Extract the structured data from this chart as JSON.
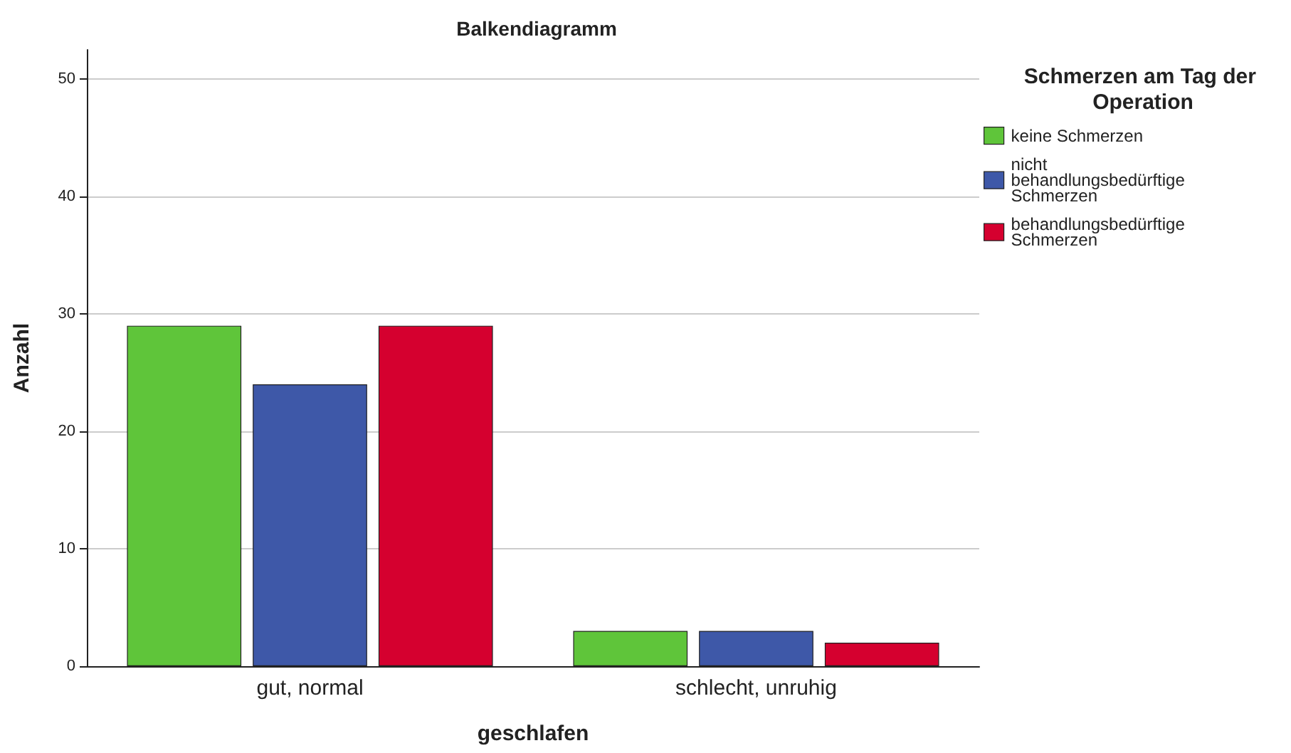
{
  "chart_data": {
    "type": "bar",
    "title": "Balkendiagramm",
    "xlabel": "geschlafen",
    "ylabel": "Anzahl",
    "legend_title": "Schmerzen am Tag der Operation",
    "categories": [
      "gut, normal",
      "schlecht, unruhig"
    ],
    "series": [
      {
        "name": "keine Schmerzen",
        "color": "#5fc53a",
        "values": [
          29,
          3
        ]
      },
      {
        "name": "nicht behandlungsbedürftige Schmerzen",
        "color": "#3e58a8",
        "values": [
          24,
          3
        ]
      },
      {
        "name": "behandlungsbedürftige Schmerzen",
        "color": "#d5002f",
        "values": [
          29,
          2
        ]
      }
    ],
    "ylim": [
      0,
      52.5
    ],
    "yticks": [
      0,
      10,
      20,
      30,
      40,
      50
    ],
    "grid": "y",
    "legend": "top right"
  }
}
